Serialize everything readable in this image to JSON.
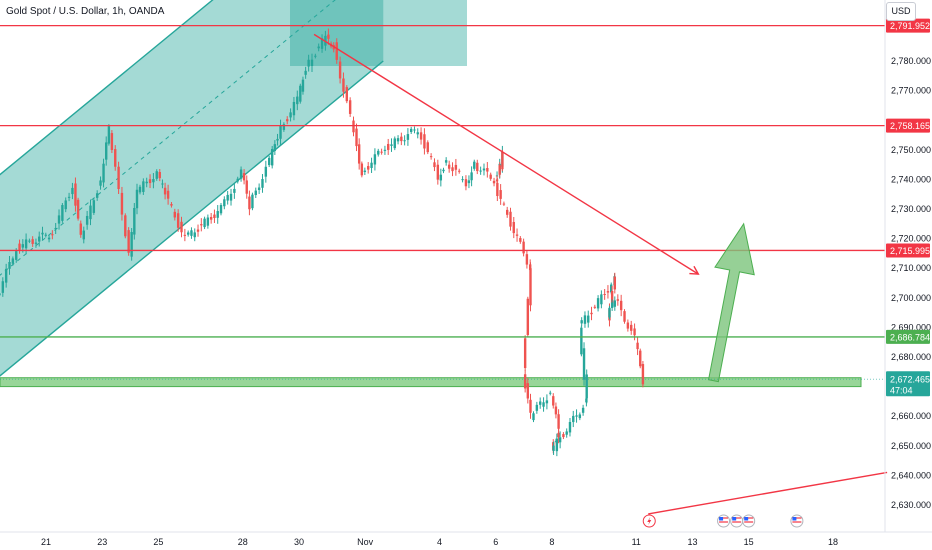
{
  "header": {
    "title": "Gold Spot / U.S. Dollar, 1h, OANDA",
    "currency": "USD"
  },
  "colors": {
    "up": "#26a69a",
    "down": "#ef5350",
    "resistance": "#f23645",
    "support": "#4caf50",
    "channel_fill": "#26a69a",
    "zone_fill": "#86cf86",
    "arrow_fill": "#7cc47c",
    "axis_text": "#131722",
    "price_badge": "#26a69a"
  },
  "chart_data": {
    "type": "candlestick",
    "symbol": "Gold Spot / U.S. Dollar",
    "timeframe": "1h",
    "source": "OANDA",
    "ylim": [
      2622,
      2801
    ],
    "y_ticks": [
      "2,630.000",
      "2,640.000",
      "2,650.000",
      "2,660.000",
      "2,680.000",
      "2,690.000",
      "2,700.000",
      "2,710.000",
      "2,720.000",
      "2,730.000",
      "2,740.000",
      "2,750.000",
      "2,770.000",
      "2,780.000"
    ],
    "x_ticks": [
      "21",
      "23",
      "25",
      "28",
      "30",
      "Nov",
      "4",
      "6",
      "8",
      "11",
      "13",
      "15",
      "18"
    ],
    "price_path": [
      {
        "date": "Oct 18",
        "price": 2691
      },
      {
        "date": "Oct 19",
        "price": 2700
      },
      {
        "date": "Oct 20",
        "price": 2717
      },
      {
        "date": "Oct 21",
        "price": 2722
      },
      {
        "date": "Oct 22",
        "price": 2738
      },
      {
        "date": "Oct 22",
        "price": 2720
      },
      {
        "date": "Oct 23",
        "price": 2740
      },
      {
        "date": "Oct 23",
        "price": 2757
      },
      {
        "date": "Oct 24",
        "price": 2715
      },
      {
        "date": "Oct 24",
        "price": 2736
      },
      {
        "date": "Oct 25",
        "price": 2742
      },
      {
        "date": "Oct 25",
        "price": 2735
      },
      {
        "date": "Oct 26",
        "price": 2720
      },
      {
        "date": "Oct 27",
        "price": 2730
      },
      {
        "date": "Oct 28",
        "price": 2742
      },
      {
        "date": "Oct 28",
        "price": 2731
      },
      {
        "date": "Oct 29",
        "price": 2746
      },
      {
        "date": "Oct 29",
        "price": 2755
      },
      {
        "date": "Oct 30",
        "price": 2767
      },
      {
        "date": "Oct 30",
        "price": 2778
      },
      {
        "date": "Oct 31",
        "price": 2788
      },
      {
        "date": "Oct 31",
        "price": 2785
      },
      {
        "date": "Nov 1",
        "price": 2756
      },
      {
        "date": "Nov 1",
        "price": 2742
      },
      {
        "date": "Nov 2",
        "price": 2750
      },
      {
        "date": "Nov 3",
        "price": 2757
      },
      {
        "date": "Nov 4",
        "price": 2741
      },
      {
        "date": "Nov 4",
        "price": 2746
      },
      {
        "date": "Nov 5",
        "price": 2739
      },
      {
        "date": "Nov 5",
        "price": 2745
      },
      {
        "date": "Nov 6",
        "price": 2740
      },
      {
        "date": "Nov 6",
        "price": 2748
      },
      {
        "date": "Nov 6",
        "price": 2738
      },
      {
        "date": "Nov 7",
        "price": 2710
      },
      {
        "date": "Nov 7",
        "price": 2675
      },
      {
        "date": "Nov 7",
        "price": 2660
      },
      {
        "date": "Nov 8",
        "price": 2668
      },
      {
        "date": "Nov 8",
        "price": 2655
      },
      {
        "date": "Nov 8",
        "price": 2648
      },
      {
        "date": "Nov 9",
        "price": 2665
      },
      {
        "date": "Nov 9",
        "price": 2690
      },
      {
        "date": "Nov 10",
        "price": 2706
      },
      {
        "date": "Nov 10",
        "price": 2693
      },
      {
        "date": "Nov 10",
        "price": 2700
      },
      {
        "date": "Nov 11",
        "price": 2686
      },
      {
        "date": "Nov 11",
        "price": 2672
      }
    ],
    "levels": [
      {
        "label": "2,791.952",
        "price": 2791.952,
        "kind": "resistance"
      },
      {
        "label": "2,758.165",
        "price": 2758.165,
        "kind": "resistance"
      },
      {
        "label": "2,715.995",
        "price": 2715.995,
        "kind": "resistance"
      },
      {
        "label": "2,686.784",
        "price": 2686.784,
        "kind": "support"
      }
    ],
    "current_price": {
      "label": "2,672.465",
      "price": 2672.465,
      "countdown": "47:04"
    },
    "support_zone": [
      2670,
      2673
    ],
    "drawings": {
      "ascending_channel": {
        "start": {
          "date": "Oct 18",
          "lower": 2663,
          "upper": 2731
        },
        "end": {
          "date": "Nov 2",
          "lower": 2780,
          "upper": 2848
        }
      },
      "descending_trendline": {
        "start": {
          "date": "Oct 31",
          "price": 2789
        },
        "end": {
          "date": "Nov 12",
          "price": 2708
        }
      },
      "rising_trendline": {
        "start": {
          "date": "Nov 11",
          "price": 2627
        },
        "end": {
          "date": "Nov 19",
          "price": 2641
        }
      },
      "bullish_arrow": {
        "start": {
          "date": "Nov 13",
          "price": 2672
        },
        "end": {
          "date": "Nov 15",
          "price": 2725
        }
      }
    },
    "event_markers": [
      {
        "date": "Nov 11",
        "kind": "flash"
      },
      {
        "date": "Nov 14",
        "kind": "flag"
      },
      {
        "date": "Nov 15",
        "kind": "flag"
      },
      {
        "date": "Nov 15",
        "kind": "flag"
      },
      {
        "date": "Nov 17",
        "kind": "flag"
      }
    ]
  }
}
